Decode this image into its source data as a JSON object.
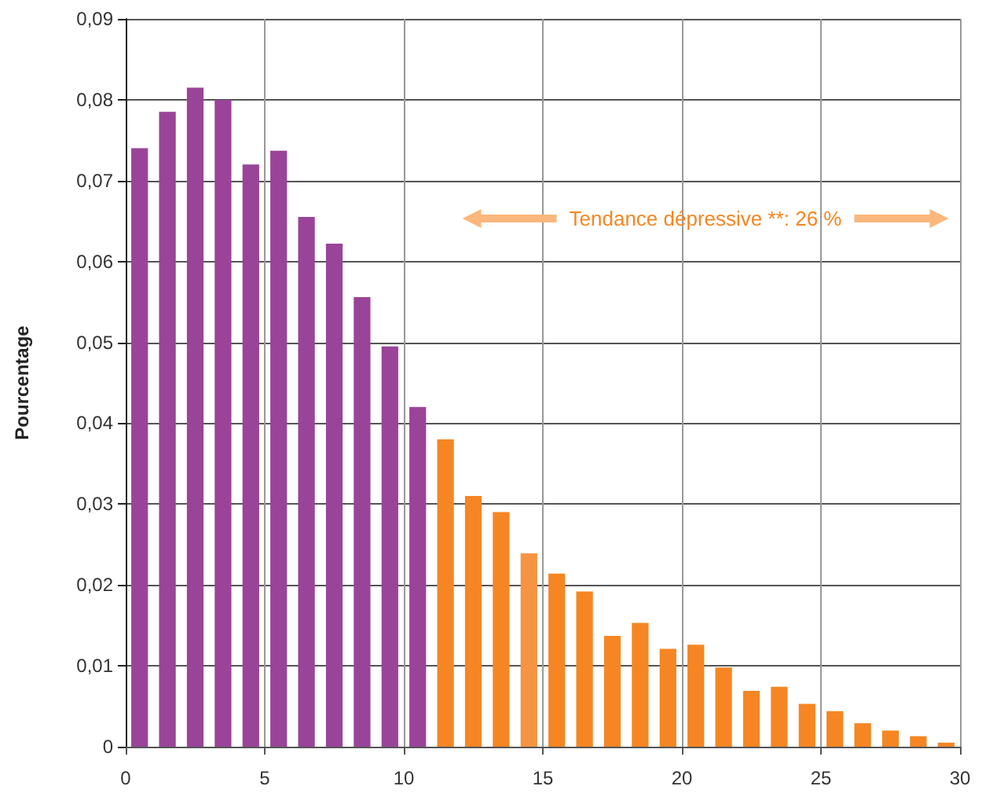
{
  "chart_data": {
    "type": "histogram",
    "ylabel": "Pourcentage",
    "annotations": [
      "Tendance dépressive **: 26 %"
    ],
    "bins": [
      0,
      1,
      2,
      3,
      4,
      5,
      6,
      7,
      8,
      9,
      10,
      11,
      12,
      13,
      14,
      15,
      16,
      17,
      18,
      19,
      20,
      21,
      22,
      23,
      24,
      25,
      26,
      27,
      28,
      29,
      30
    ],
    "values": [
      0.074,
      0.0785,
      0.0815,
      0.08,
      0.072,
      0.0737,
      0.0655,
      0.0622,
      0.0556,
      0.0495,
      0.042,
      0.038,
      0.031,
      0.029,
      0.0239,
      0.0214,
      0.0192,
      0.0137,
      0.0153,
      0.0121,
      0.0126,
      0.0098,
      0.0069,
      0.0074,
      0.0053,
      0.0044,
      0.0029,
      0.002,
      0.0013,
      0.0005
    ],
    "colors": [
      "#994499",
      "#994499",
      "#994499",
      "#994499",
      "#994499",
      "#994499",
      "#994499",
      "#994499",
      "#994499",
      "#994499",
      "#994499",
      "#f58623",
      "#f58623",
      "#f58623",
      "#f79443",
      "#f58623",
      "#f58623",
      "#f58623",
      "#f58623",
      "#f58623",
      "#f58623",
      "#f58623",
      "#f58623",
      "#f58623",
      "#f58623",
      "#f58623",
      "#f58623",
      "#f58623",
      "#f58623",
      "#f58623"
    ],
    "xlim": [
      0,
      30
    ],
    "xticks": [
      0,
      5,
      10,
      15,
      20,
      25,
      30
    ],
    "ylim": [
      0,
      0.09
    ],
    "yticks": [
      {
        "value": 0,
        "label": "0"
      },
      {
        "value": 0.01,
        "label": "0,01"
      },
      {
        "value": 0.02,
        "label": "0,02"
      },
      {
        "value": 0.03,
        "label": "0,03"
      },
      {
        "value": 0.04,
        "label": "0,04"
      },
      {
        "value": 0.05,
        "label": "0,05"
      },
      {
        "value": 0.06,
        "label": "0,06"
      },
      {
        "value": 0.07,
        "label": "0,07"
      },
      {
        "value": 0.08,
        "label": "0,08"
      },
      {
        "value": 0.09,
        "label": "0,09"
      }
    ],
    "grid": true
  }
}
